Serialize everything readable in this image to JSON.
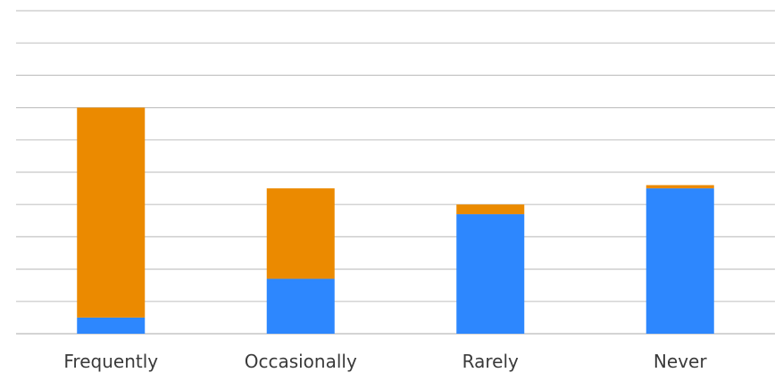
{
  "chart_data": {
    "type": "bar",
    "stacked": true,
    "categories": [
      "Frequently",
      "Occasionally",
      "Rarely",
      "Never"
    ],
    "series": [
      {
        "values": [
          0.5,
          1.7,
          3.7,
          4.5
        ]
      },
      {
        "values": [
          6.5,
          2.8,
          0.3,
          0.1
        ]
      }
    ],
    "ylim": [
      0,
      10
    ],
    "gridlines": 10,
    "grid": true,
    "legend": "none",
    "colors": [
      "#2d87fe",
      "#eb8a00"
    ],
    "grid_color": "#c6c6c6"
  }
}
